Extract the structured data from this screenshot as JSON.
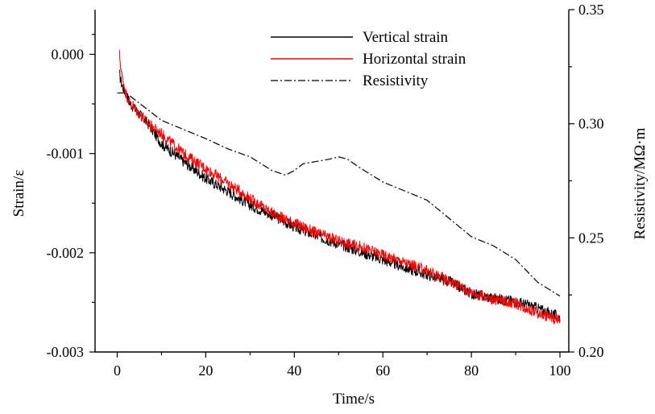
{
  "chart_data": {
    "type": "line",
    "title": "",
    "xlabel": "Time/s",
    "ylabel_left": "Strain/ε",
    "ylabel_right": "Resistivity/MΩ·m",
    "xlim": [
      -5,
      102
    ],
    "ylim_left": [
      -0.003,
      0.00045
    ],
    "ylim_right": [
      0.2,
      0.35
    ],
    "x_ticks": [
      0,
      20,
      40,
      60,
      80,
      100
    ],
    "x_tick_labels": [
      "0",
      "20",
      "40",
      "60",
      "80",
      "100"
    ],
    "y_left_ticks": [
      0.0,
      -0.001,
      -0.002,
      -0.003
    ],
    "y_left_tick_labels": [
      "0.000",
      "-0.001",
      "-0.002",
      "-0.003"
    ],
    "y_right_ticks": [
      0.35,
      0.3,
      0.25,
      0.2
    ],
    "y_right_tick_labels": [
      "0.35",
      "0.30",
      "0.25",
      "0.20"
    ],
    "grid": false,
    "legend_position": "top-center",
    "series": [
      {
        "name": "Vertical strain",
        "axis": "left",
        "color": "#000000",
        "style": "solid",
        "x": [
          0.5,
          1,
          2,
          3,
          5,
          7,
          10,
          15,
          20,
          25,
          30,
          35,
          40,
          45,
          50,
          55,
          60,
          65,
          70,
          75,
          80,
          85,
          90,
          95,
          100
        ],
        "y": [
          -0.0002,
          -0.0003,
          -0.0004,
          -0.0005,
          -0.0006,
          -0.0007,
          -0.0009,
          -0.00108,
          -0.00125,
          -0.00138,
          -0.00152,
          -0.00162,
          -0.00174,
          -0.00183,
          -0.00191,
          -0.00199,
          -0.00207,
          -0.00215,
          -0.00222,
          -0.00229,
          -0.00241,
          -0.00246,
          -0.00249,
          -0.00256,
          -0.00265
        ]
      },
      {
        "name": "Horizontal strain",
        "axis": "left",
        "color": "#ff0000",
        "style": "solid",
        "x": [
          0.5,
          1,
          2,
          3,
          5,
          7,
          10,
          15,
          20,
          25,
          30,
          35,
          40,
          45,
          50,
          55,
          60,
          65,
          70,
          75,
          80,
          85,
          90,
          95,
          100
        ],
        "y": [
          0.0,
          -0.0002,
          -0.0004,
          -0.0005,
          -0.0006,
          -0.0007,
          -0.0008,
          -0.001,
          -0.00115,
          -0.0013,
          -0.00145,
          -0.0016,
          -0.0017,
          -0.0018,
          -0.00188,
          -0.00194,
          -0.00202,
          -0.0021,
          -0.00218,
          -0.00228,
          -0.0024,
          -0.00247,
          -0.00251,
          -0.00261,
          -0.00268
        ]
      },
      {
        "name": "Resistivity",
        "axis": "right",
        "color": "#000000",
        "style": "dashdot",
        "x": [
          0,
          2,
          5,
          10,
          15,
          20,
          25,
          30,
          35,
          38,
          40,
          42,
          45,
          48,
          50,
          52,
          55,
          60,
          65,
          70,
          75,
          80,
          85,
          90,
          95,
          100
        ],
        "y": [
          0.3135,
          0.3135,
          0.309,
          0.3015,
          0.2975,
          0.2935,
          0.289,
          0.2855,
          0.2795,
          0.2775,
          0.2795,
          0.2825,
          0.2835,
          0.2845,
          0.2855,
          0.2845,
          0.2805,
          0.2745,
          0.2705,
          0.2665,
          0.2585,
          0.2505,
          0.2465,
          0.2405,
          0.2305,
          0.2245
        ]
      }
    ]
  }
}
